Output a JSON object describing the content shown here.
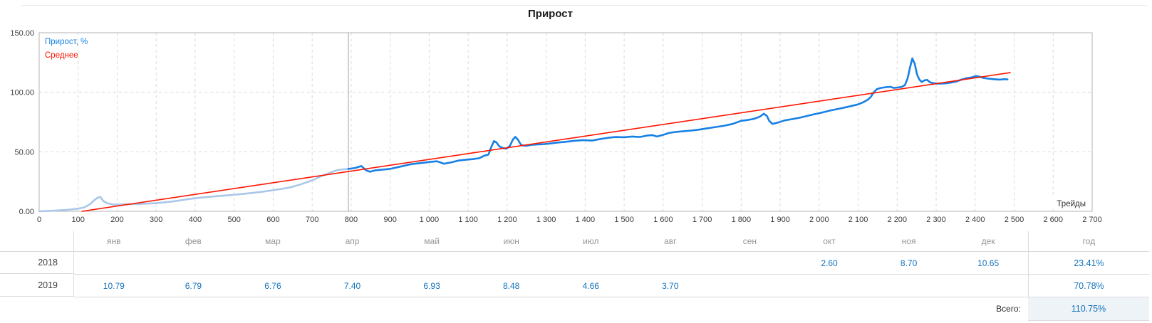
{
  "title": "Прирост",
  "chart_data": {
    "type": "line",
    "title": "Прирост",
    "xlabel": "Трейды",
    "ylabel": "",
    "xlim": [
      0,
      2700
    ],
    "ylim": [
      0,
      150
    ],
    "grid": "dashed",
    "legend_position": "top-left",
    "legend": [
      {
        "label": "Прирост, %",
        "color": "#1780e4"
      },
      {
        "label": "Среднее",
        "color": "#fe1500"
      }
    ],
    "x_tick_labels": [
      "0",
      "100",
      "200",
      "300",
      "400",
      "500",
      "600",
      "700",
      "800",
      "900",
      "1 000",
      "1 100",
      "1 200",
      "1 300",
      "1 400",
      "1 500",
      "1 600",
      "1 700",
      "1 800",
      "1 900",
      "2 000",
      "2 100",
      "2 200",
      "2 300",
      "2 400",
      "2 500",
      "2 600",
      "2 700"
    ],
    "y_ticks": [
      {
        "v": 0,
        "label": "0.00"
      },
      {
        "v": 50,
        "label": "50.00"
      },
      {
        "v": 100,
        "label": "100.00"
      },
      {
        "v": 150,
        "label": "150.00"
      }
    ],
    "marker_x": 793,
    "series": [
      {
        "key": "history-line",
        "name": "Прирост, % (history)",
        "color": "#a9c7e8",
        "width": 2.6,
        "points": [
          [
            0,
            0
          ],
          [
            40,
            0.6
          ],
          [
            70,
            1.2
          ],
          [
            95,
            2
          ],
          [
            115,
            3.2
          ],
          [
            130,
            6
          ],
          [
            142,
            9.5
          ],
          [
            150,
            11.5
          ],
          [
            157,
            12
          ],
          [
            165,
            8.5
          ],
          [
            175,
            6.8
          ],
          [
            190,
            5.6
          ],
          [
            215,
            5.8
          ],
          [
            245,
            6.1
          ],
          [
            270,
            6.4
          ],
          [
            300,
            6.8
          ],
          [
            340,
            8.2
          ],
          [
            370,
            9.6
          ],
          [
            400,
            11
          ],
          [
            430,
            12
          ],
          [
            460,
            12.8
          ],
          [
            490,
            13.6
          ],
          [
            520,
            14.5
          ],
          [
            550,
            15.6
          ],
          [
            580,
            16.8
          ],
          [
            610,
            18.2
          ],
          [
            643,
            20
          ],
          [
            670,
            22.6
          ],
          [
            700,
            26
          ],
          [
            722,
            29.4
          ],
          [
            740,
            31.6
          ],
          [
            764,
            34.6
          ],
          [
            780,
            35.2
          ],
          [
            793,
            35.6
          ]
        ]
      },
      {
        "key": "growth-line",
        "name": "Прирост, %",
        "color": "#1780e4",
        "width": 2.6,
        "points": [
          [
            793,
            35.6
          ],
          [
            810,
            36.4
          ],
          [
            826,
            38
          ],
          [
            838,
            34.5
          ],
          [
            848,
            33.2
          ],
          [
            862,
            34.4
          ],
          [
            880,
            35
          ],
          [
            900,
            35.6
          ],
          [
            925,
            37.5
          ],
          [
            954,
            39.6
          ],
          [
            980,
            40.6
          ],
          [
            1005,
            41.6
          ],
          [
            1020,
            42
          ],
          [
            1038,
            40
          ],
          [
            1055,
            41
          ],
          [
            1075,
            42.6
          ],
          [
            1095,
            43.4
          ],
          [
            1111,
            43.8
          ],
          [
            1128,
            44.6
          ],
          [
            1142,
            46.8
          ],
          [
            1152,
            47.6
          ],
          [
            1158,
            53
          ],
          [
            1166,
            59
          ],
          [
            1172,
            58
          ],
          [
            1180,
            54.5
          ],
          [
            1190,
            53
          ],
          [
            1198,
            52.6
          ],
          [
            1207,
            55
          ],
          [
            1215,
            60.5
          ],
          [
            1221,
            62.5
          ],
          [
            1228,
            60
          ],
          [
            1236,
            55.5
          ],
          [
            1248,
            55
          ],
          [
            1262,
            55.8
          ],
          [
            1280,
            56.2
          ],
          [
            1295,
            56.4
          ],
          [
            1312,
            57
          ],
          [
            1330,
            57.8
          ],
          [
            1350,
            58.4
          ],
          [
            1372,
            59.2
          ],
          [
            1395,
            59.8
          ],
          [
            1417,
            59.4
          ],
          [
            1440,
            60.8
          ],
          [
            1460,
            61.8
          ],
          [
            1478,
            62.4
          ],
          [
            1500,
            62.2
          ],
          [
            1520,
            62.8
          ],
          [
            1540,
            62.4
          ],
          [
            1558,
            63.6
          ],
          [
            1572,
            64
          ],
          [
            1584,
            62.8
          ],
          [
            1598,
            64
          ],
          [
            1615,
            65.8
          ],
          [
            1630,
            66.6
          ],
          [
            1650,
            67.2
          ],
          [
            1672,
            67.8
          ],
          [
            1692,
            68.6
          ],
          [
            1715,
            69.8
          ],
          [
            1735,
            70.8
          ],
          [
            1755,
            71.8
          ],
          [
            1778,
            73.4
          ],
          [
            1800,
            76
          ],
          [
            1815,
            76.6
          ],
          [
            1832,
            77.6
          ],
          [
            1848,
            79.5
          ],
          [
            1858,
            82
          ],
          [
            1866,
            80
          ],
          [
            1872,
            76
          ],
          [
            1880,
            73.4
          ],
          [
            1895,
            74.6
          ],
          [
            1912,
            76.4
          ],
          [
            1930,
            77.4
          ],
          [
            1950,
            78.6
          ],
          [
            1968,
            80
          ],
          [
            1988,
            81.6
          ],
          [
            2008,
            83
          ],
          [
            2028,
            84.6
          ],
          [
            2048,
            86
          ],
          [
            2068,
            87.4
          ],
          [
            2085,
            88.6
          ],
          [
            2100,
            89.8
          ],
          [
            2113,
            91.6
          ],
          [
            2124,
            93.6
          ],
          [
            2132,
            96
          ],
          [
            2140,
            100
          ],
          [
            2148,
            102.6
          ],
          [
            2158,
            103.6
          ],
          [
            2170,
            104.2
          ],
          [
            2182,
            104.6
          ],
          [
            2192,
            103.6
          ],
          [
            2202,
            104
          ],
          [
            2212,
            104.6
          ],
          [
            2220,
            106
          ],
          [
            2227,
            112
          ],
          [
            2233,
            121
          ],
          [
            2239,
            128.4
          ],
          [
            2245,
            124
          ],
          [
            2251,
            115
          ],
          [
            2257,
            110.6
          ],
          [
            2263,
            108.6
          ],
          [
            2270,
            110
          ],
          [
            2277,
            110.4
          ],
          [
            2284,
            108.4
          ],
          [
            2292,
            107.6
          ],
          [
            2305,
            107.2
          ],
          [
            2320,
            107.4
          ],
          [
            2335,
            108
          ],
          [
            2350,
            108.8
          ],
          [
            2365,
            110.6
          ],
          [
            2378,
            111.8
          ],
          [
            2392,
            112.6
          ],
          [
            2402,
            113.6
          ],
          [
            2412,
            113
          ],
          [
            2422,
            112
          ],
          [
            2435,
            111.4
          ],
          [
            2448,
            111
          ],
          [
            2462,
            110.6
          ],
          [
            2475,
            111
          ],
          [
            2483,
            110.8
          ]
        ]
      },
      {
        "key": "average-line",
        "name": "Среднее",
        "color": "#fe1500",
        "width": 1.6,
        "points": [
          [
            110,
            0
          ],
          [
            2490,
            116.5
          ]
        ]
      }
    ]
  },
  "table": {
    "months": [
      "янв",
      "фев",
      "мар",
      "апр",
      "май",
      "июн",
      "июл",
      "авг",
      "сен",
      "окт",
      "ноя",
      "дек"
    ],
    "year_header": "год",
    "rows": [
      {
        "year": "2018",
        "values": [
          "",
          "",
          "",
          "",
          "",
          "",
          "",
          "",
          "",
          "2.60",
          "8.70",
          "10.65"
        ],
        "total": "23.41%"
      },
      {
        "year": "2019",
        "values": [
          "10.79",
          "6.79",
          "6.76",
          "7.40",
          "6.93",
          "8.48",
          "4.66",
          "3.70",
          "",
          "",
          "",
          ""
        ],
        "total": "70.78%"
      }
    ],
    "total_label": "Всего:",
    "total_value": "110.75%"
  }
}
